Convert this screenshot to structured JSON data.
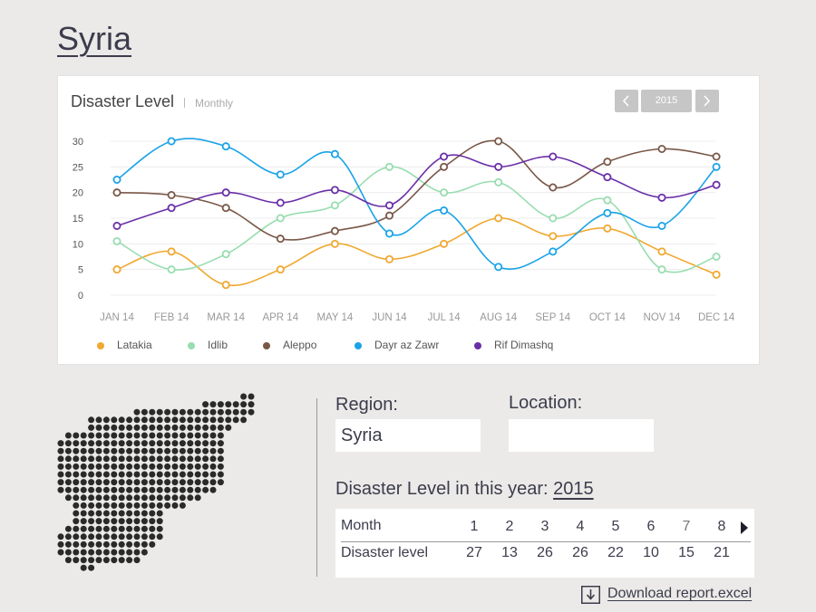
{
  "page": {
    "title": "Syria"
  },
  "chart_panel": {
    "title": "Disaster Level",
    "subtitle": "Monthly",
    "year": "2015",
    "prev_icon": "chevron-left-icon",
    "next_icon": "chevron-right-icon"
  },
  "chart_data": {
    "type": "line",
    "title": "Disaster Level",
    "subtitle": "Monthly",
    "xlabel": "",
    "ylabel": "",
    "categories": [
      "JAN 14",
      "FEB 14",
      "MAR 14",
      "APR 14",
      "MAY 14",
      "JUN 14",
      "JUL 14",
      "AUG 14",
      "SEP 14",
      "OCT 14",
      "NOV 14",
      "DEC 14"
    ],
    "ylim": [
      0,
      30
    ],
    "yticks": [
      0,
      5,
      10,
      15,
      20,
      25,
      30
    ],
    "grid": true,
    "legend_position": "bottom",
    "series": [
      {
        "name": "Latakia",
        "color": "#f0a830",
        "values": [
          5,
          8.5,
          2,
          5,
          10,
          7,
          10,
          15,
          11.5,
          13,
          8.5,
          4
        ]
      },
      {
        "name": "Idlib",
        "color": "#98ddb0",
        "values": [
          10.5,
          5,
          8,
          15,
          17.5,
          25,
          20,
          22,
          15,
          18.5,
          5,
          7.5
        ]
      },
      {
        "name": "Aleppo",
        "color": "#7a5848",
        "values": [
          20,
          19.5,
          17,
          11,
          12.5,
          15.5,
          25,
          30,
          21,
          26,
          28.5,
          27
        ]
      },
      {
        "name": "Dayr az Zawr",
        "color": "#1aa3e8",
        "values": [
          22.5,
          30,
          29,
          23.5,
          27.5,
          12,
          16.5,
          5.5,
          8.5,
          16,
          13.5,
          25
        ]
      },
      {
        "name": "Rif Dimashq",
        "color": "#6a2fa8",
        "values": [
          13.5,
          17,
          20,
          18,
          20.5,
          17.5,
          27,
          25,
          27,
          23,
          19,
          21.5
        ]
      }
    ]
  },
  "details": {
    "region_label": "Region:",
    "region_value": "Syria",
    "location_label": "Location:",
    "location_value": "",
    "disaster_title": "Disaster Level in this year:",
    "disaster_year": "2015",
    "table": {
      "month_header": "Month",
      "level_header": "Disaster level",
      "months": [
        "1",
        "2",
        "3",
        "4",
        "5",
        "6",
        "7",
        "8"
      ],
      "levels": [
        "27",
        "13",
        "26",
        "26",
        "22",
        "10",
        "15",
        "21"
      ],
      "next_icon": "triangle-right-icon"
    },
    "download_label": "Download report.excel",
    "download_icon": "download-icon"
  }
}
